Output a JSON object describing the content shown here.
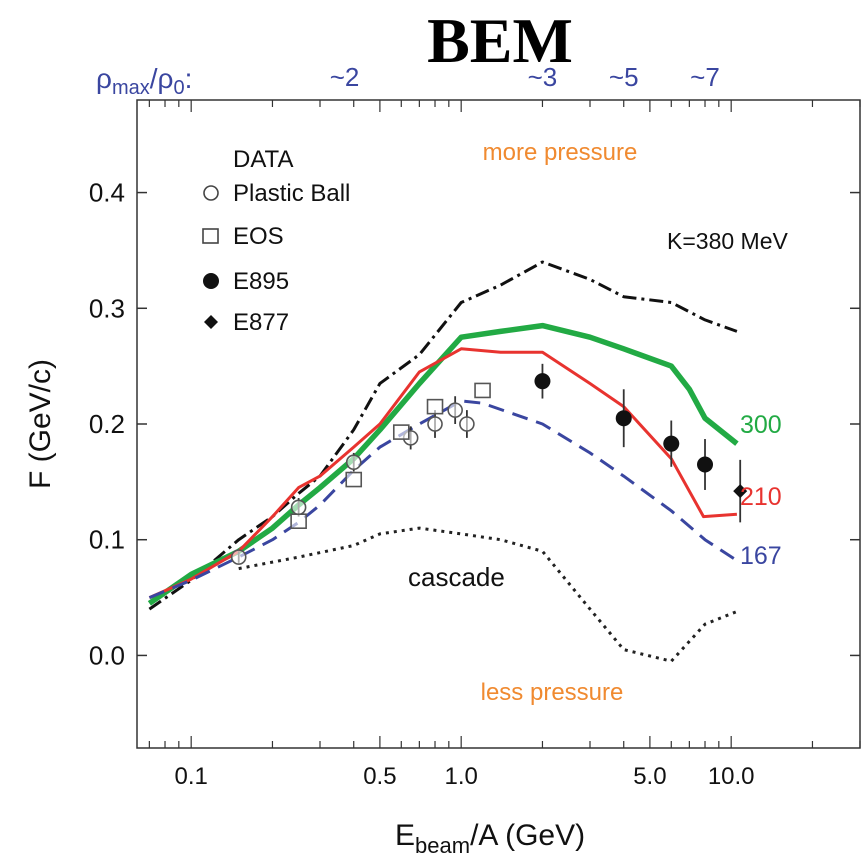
{
  "chart_data": {
    "type": "line",
    "title": "BEM",
    "top_axis": {
      "label_main": "ρ",
      "label_sub1": "max",
      "label_mid": "/ρ",
      "label_sub2": "0",
      "label_colon": ":",
      "color": "#3a46a0",
      "ticks": [
        {
          "label": "~2",
          "x": 0.37
        },
        {
          "label": "~3",
          "x": 2.0
        },
        {
          "label": "~5",
          "x": 4.0
        },
        {
          "label": "~7",
          "x": 8.0
        }
      ]
    },
    "xlabel_main": "E",
    "xlabel_sub": "beam",
    "xlabel_rest": "/A (GeV)",
    "ylabel": "F (GeV/c)",
    "xscale": "log",
    "xlim": [
      0.063,
      30
    ],
    "ylim": [
      -0.08,
      0.48
    ],
    "xticks": [
      {
        "v": 0.1,
        "label": "0.1"
      },
      {
        "v": 0.5,
        "label": "0.5"
      },
      {
        "v": 1.0,
        "label": "1.0"
      },
      {
        "v": 5.0,
        "label": "5.0"
      },
      {
        "v": 10.0,
        "label": "10.0"
      }
    ],
    "yticks": [
      {
        "v": 0.0,
        "label": "0.0"
      },
      {
        "v": 0.1,
        "label": "0.1"
      },
      {
        "v": 0.2,
        "label": "0.2"
      },
      {
        "v": 0.3,
        "label": "0.3"
      },
      {
        "v": 0.4,
        "label": "0.4"
      }
    ],
    "annotations": {
      "more_pressure": "more pressure",
      "less_pressure": "less pressure",
      "k380": "K=380 MeV",
      "cascade": "cascade",
      "label_300": "300",
      "label_210": "210",
      "label_167": "167",
      "pressure_color": "#f08a30"
    },
    "legend": {
      "title": "DATA",
      "placement": "top-left",
      "entries": [
        "Plastic Ball",
        "EOS",
        "E895",
        "E877"
      ]
    },
    "series": [
      {
        "style": "dash-dot",
        "color": "#111111",
        "x": [
          0.07,
          0.1,
          0.15,
          0.2,
          0.25,
          0.3,
          0.4,
          0.5,
          0.7,
          1.0,
          1.4,
          2.0,
          3.0,
          4.0,
          6.0,
          8.0,
          10.5
        ],
        "y": [
          0.04,
          0.065,
          0.1,
          0.12,
          0.14,
          0.155,
          0.195,
          0.235,
          0.26,
          0.305,
          0.32,
          0.34,
          0.325,
          0.31,
          0.305,
          0.29,
          0.28
        ]
      },
      {
        "style": "solid-thick",
        "color": "#22aa44",
        "x": [
          0.07,
          0.1,
          0.15,
          0.2,
          0.25,
          0.3,
          0.4,
          0.5,
          0.7,
          1.0,
          1.4,
          2.0,
          3.0,
          4.0,
          6.0,
          7.0,
          8.0,
          10.5
        ],
        "y": [
          0.045,
          0.07,
          0.09,
          0.11,
          0.13,
          0.145,
          0.17,
          0.195,
          0.235,
          0.275,
          0.28,
          0.285,
          0.275,
          0.265,
          0.25,
          0.23,
          0.205,
          0.183
        ]
      },
      {
        "style": "solid",
        "color": "#e8332f",
        "x": [
          0.07,
          0.1,
          0.15,
          0.2,
          0.25,
          0.3,
          0.4,
          0.5,
          0.7,
          1.0,
          1.4,
          2.0,
          3.0,
          4.0,
          6.0,
          7.9,
          10.5
        ],
        "y": [
          0.05,
          0.066,
          0.09,
          0.12,
          0.145,
          0.155,
          0.18,
          0.2,
          0.245,
          0.265,
          0.262,
          0.262,
          0.235,
          0.215,
          0.17,
          0.12,
          0.122
        ]
      },
      {
        "style": "dashed",
        "color": "#3a46a0",
        "x": [
          0.07,
          0.1,
          0.15,
          0.2,
          0.25,
          0.3,
          0.4,
          0.5,
          0.7,
          1.0,
          1.2,
          2.0,
          3.0,
          4.0,
          6.0,
          8.0,
          10.5
        ],
        "y": [
          0.05,
          0.065,
          0.085,
          0.1,
          0.115,
          0.13,
          0.16,
          0.18,
          0.2,
          0.22,
          0.218,
          0.2,
          0.175,
          0.155,
          0.125,
          0.1,
          0.082
        ]
      },
      {
        "style": "dotted",
        "color": "#222222",
        "x": [
          0.15,
          0.25,
          0.4,
          0.5,
          0.7,
          1.0,
          1.4,
          2.0,
          3.0,
          4.0,
          6.0,
          8.0,
          10.5
        ],
        "y": [
          0.075,
          0.085,
          0.095,
          0.105,
          0.11,
          0.105,
          0.1,
          0.09,
          0.04,
          0.005,
          -0.005,
          0.027,
          0.038
        ]
      }
    ],
    "markers": {
      "plastic_ball": {
        "x": [
          0.15,
          0.25,
          0.4,
          0.65,
          0.8,
          0.95,
          1.05
        ],
        "y": [
          0.085,
          0.128,
          0.167,
          0.188,
          0.2,
          0.212,
          0.2
        ],
        "err": [
          0.005,
          0.008,
          0.008,
          0.01,
          0.012,
          0.012,
          0.012
        ]
      },
      "eos": {
        "x": [
          0.25,
          0.4,
          0.6,
          0.8,
          1.2
        ],
        "y": [
          0.116,
          0.152,
          0.193,
          0.215,
          0.229
        ]
      },
      "e895": {
        "x": [
          2.0,
          4.0,
          6.0,
          8.0
        ],
        "y": [
          0.237,
          0.205,
          0.183,
          0.165
        ],
        "err": [
          0.015,
          0.025,
          0.02,
          0.022
        ]
      },
      "e877": {
        "x": [
          10.8
        ],
        "y": [
          0.142
        ],
        "err": [
          0.027
        ]
      }
    }
  }
}
